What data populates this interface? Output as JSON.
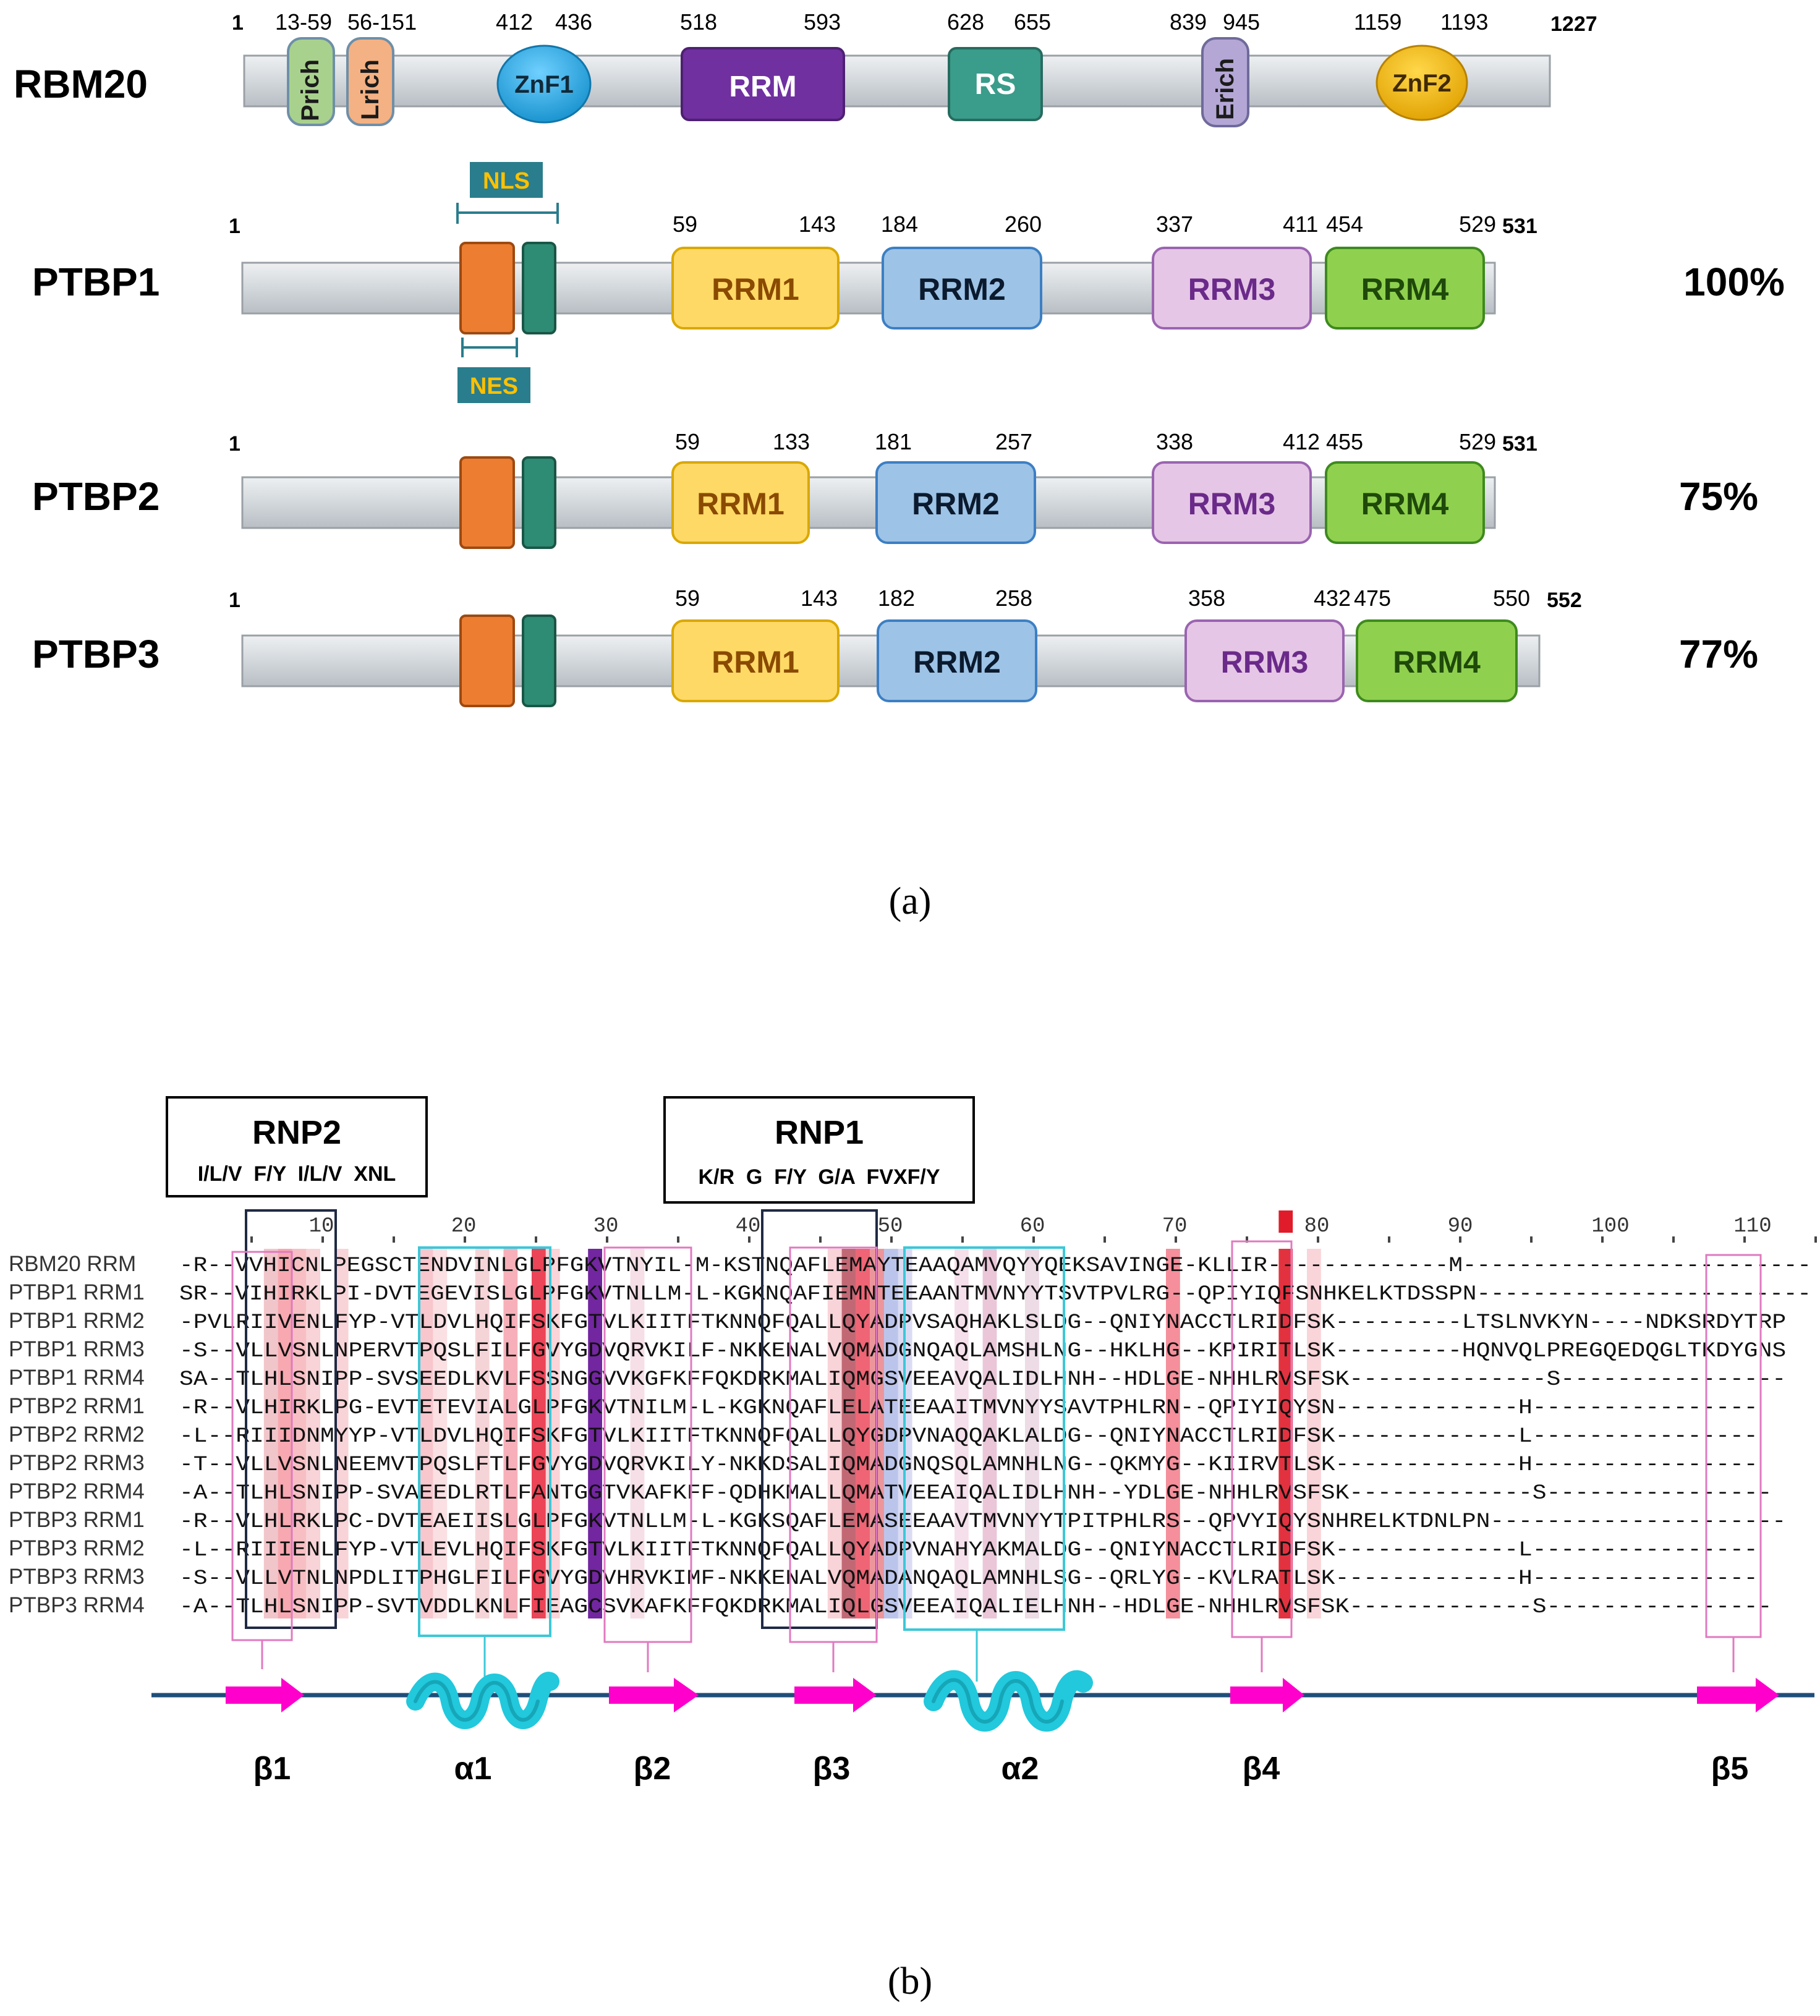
{
  "colors": {
    "bar": "#d3d8dc",
    "prich": "#a9d18e",
    "lrich": "#f4b183",
    "znf1": "#1fa9e8",
    "rrm_rbm20": "#7030a0",
    "rs": "#3a9c8a",
    "erich": "#b4a7d6",
    "znf2": "#f5b800",
    "rrm1": "#ffd966",
    "rrm2": "#9dc3e6",
    "rrm3": "#e6c6e6",
    "rrm4": "#8fd14f",
    "nls": "#ed7d31",
    "nes": "#2e8b74",
    "signal_box": "#2a7d8c",
    "signal_text": "#ffc000",
    "strand": "#ff00cc",
    "helix": "#22c8dc",
    "backbone": "#1f4e79"
  },
  "panel_a": {
    "label": "(a)",
    "proteins": [
      {
        "name": "RBM20",
        "start": "1",
        "end": "1227",
        "identity": "",
        "domains": [
          {
            "label": "Prich",
            "range": "13-59"
          },
          {
            "label": "Lrich",
            "range": "56-151"
          },
          {
            "label": "ZnF1",
            "start": "412",
            "end": "436"
          },
          {
            "label": "RRM",
            "start": "518",
            "end": "593"
          },
          {
            "label": "RS",
            "start": "628",
            "end": "655"
          },
          {
            "label": "Erich",
            "start": "839",
            "end": "945"
          },
          {
            "label": "ZnF2",
            "start": "1159",
            "end": "1193"
          }
        ]
      },
      {
        "name": "PTBP1",
        "start": "1",
        "end": "531",
        "identity": "100%",
        "nls": "NLS",
        "nes": "NES",
        "domains": [
          {
            "label": "RRM1",
            "start": "59",
            "end": "143"
          },
          {
            "label": "RRM2",
            "start": "184",
            "end": "260"
          },
          {
            "label": "RRM3",
            "start": "337",
            "end": "411"
          },
          {
            "label": "RRM4",
            "start": "454",
            "end": "529"
          }
        ]
      },
      {
        "name": "PTBP2",
        "start": "1",
        "end": "531",
        "identity": "75%",
        "domains": [
          {
            "label": "RRM1",
            "start": "59",
            "end": "133"
          },
          {
            "label": "RRM2",
            "start": "181",
            "end": "257"
          },
          {
            "label": "RRM3",
            "start": "338",
            "end": "412"
          },
          {
            "label": "RRM4",
            "start": "455",
            "end": "529"
          }
        ]
      },
      {
        "name": "PTBP3",
        "start": "1",
        "end": "552",
        "identity": "77%",
        "domains": [
          {
            "label": "RRM1",
            "start": "59",
            "end": "143"
          },
          {
            "label": "RRM2",
            "start": "182",
            "end": "258"
          },
          {
            "label": "RRM3",
            "start": "358",
            "end": "432"
          },
          {
            "label": "RRM4",
            "start": "475",
            "end": "550"
          }
        ]
      }
    ]
  },
  "panel_b": {
    "label": "(b)",
    "rnp2": {
      "title": "RNP2",
      "motif": "I/L/V  F/Y  I/L/V  XNL"
    },
    "rnp1": {
      "title": "RNP1",
      "motif": "K/R  G  F/Y  G/A  FVXF/Y"
    },
    "ruler": [
      "10",
      "20",
      "30",
      "40",
      "50",
      "60",
      "70",
      "80",
      "90",
      "100",
      "110"
    ],
    "sequences": [
      {
        "name": "RBM20 RRM",
        "seq": "-R--VVHICNLPEGSCTENDVINLGLPFGKVTNYIL-M-KSTNQAFLEMAYTEAAQAMVQYYQEKSAVINGE-KLLIR-------------M-------------------------"
      },
      {
        "name": "PTBP1 RRM1",
        "seq": "SR--VIHIRKLPI-DVTEGEVISLGLPFGKVTNLLM-L-KGKNQAFIEMNTEEAANTMVNYYTSVTPVLRG--QPIYIQFSNHKELKTDSSPN------------------------"
      },
      {
        "name": "PTBP1 RRM2",
        "seq": "-PVLRIIVENLFYP-VTLDVLHQIFSKFGTVLKIITFTKNNQFQALLQYADPVSAQHAKLSLDG--QNIYNACCTLRIDFSK---------LTSLNVKYN----NDKSRDYTRP"
      },
      {
        "name": "PTBP1 RRM3",
        "seq": "-S--VLLVSNLNPERVTPQSLFILFGVYGDVQRVKILF-NKKENALVQMADGNQAQLAMSHLNG--HKLHG--KPIRITLSK---------HQNVQLPREGQEDQGLTKDYGNS"
      },
      {
        "name": "PTBP1 RRM4",
        "seq": "SA--TLHLSNIPP-SVSEEDLKVLFSSNGGVVKGFKFFQKDRKMALIQMGSVEEAVQALIDLHNH--HDLGE-NHHLRVSFSK--------------S----------------"
      },
      {
        "name": "PTBP2 RRM1",
        "seq": "-R--VLHIRKLPG-EVTETEVIALGLPFGKVTNILM-L-KGKNQAFLELATEEAAITMVNYYSAVTPHLRN--QPIYIQYSN-------------H----------------"
      },
      {
        "name": "PTBP2 RRM2",
        "seq": "-L--RIIIDNMYYP-VTLDVLHQIFSKFGTVLKIITFTKNNQFQALLQYGDPVNAQQAKLALDG--QNIYNACCTLRIDFSK-------------L----------------"
      },
      {
        "name": "PTBP2 RRM3",
        "seq": "-T--VLLVSNLNEEMVTPQSLFTLFGVYGDVQRVKILY-NKKDSALIQMADGNQSQLAMNHLNG--QKMYG--KIIRVTLSK-------------H----------------"
      },
      {
        "name": "PTBP2 RRM4",
        "seq": "-A--TLHLSNIPP-SVAEEDLRTLFANTGGTVKAFKFF-QDHKMALLQMATVEEAIQALIDLHNH--YDLGE-NHHLRVSFSK-------------S----------------"
      },
      {
        "name": "PTBP3 RRM1",
        "seq": "-R--VLHLRKLPC-DVTEAEIISLGLPFGKVTNLLM-L-KGKSQAFLEMASEEAAVTMVNYYTPITPHLRS--QPVYIQYSNHRELKTDNLPN---------------------"
      },
      {
        "name": "PTBP3 RRM2",
        "seq": "-L--RIIIENLFYP-VTLEVLHQIFSKFGTVLKIITFTKNNQFQALLQYADPVNAHYAKMALDG--QNIYNACCTLRIDFSK-------------L----------------"
      },
      {
        "name": "PTBP3 RRM3",
        "seq": "-S--VLLVTNLNPDLITPHGLFILFGVYGDVHRVKIMF-NKKENALVQMADANQAQLAMNHLSG--QRLYG--KVLRATLSK-------------H----------------"
      },
      {
        "name": "PTBP3 RRM4",
        "seq": "-A--TLHLSNIPP-SVTVDDLKNLFIEAGCSVKAFKFFQKDRKMALIQLGSVEEAIQALIELHNH--HDLGE-NHHLRVSFSK-------------S----------------"
      }
    ],
    "structure": [
      "β1",
      "α1",
      "β2",
      "β3",
      "α2",
      "β4",
      "β5"
    ]
  }
}
